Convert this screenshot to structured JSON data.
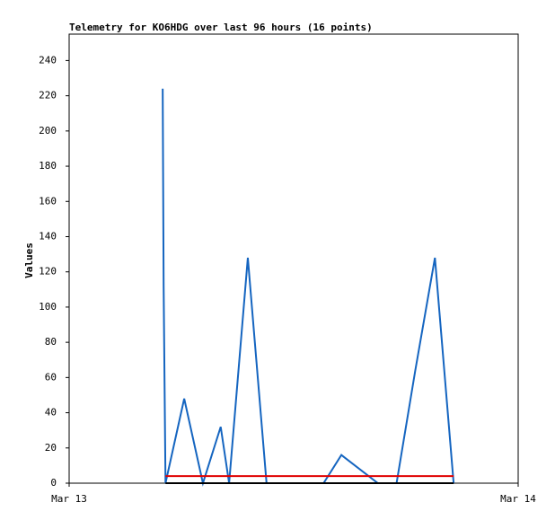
{
  "chart_data": {
    "type": "line",
    "title": "Telemetry for KO6HDG over last 96 hours (16 points)",
    "y_label": "Values",
    "x": [
      5.0,
      5.05,
      5.15,
      6.15,
      7.15,
      8.1,
      8.55,
      9.55,
      10.55,
      13.6,
      14.55,
      16.5,
      17.5,
      18.5,
      19.55,
      20.55
    ],
    "series": [
      {
        "color": "#1565c0",
        "values": [
          224,
          112,
          0,
          48,
          0,
          32,
          0,
          128,
          0,
          0,
          16,
          0,
          0,
          64,
          128,
          0
        ]
      },
      {
        "color": "#e00000",
        "values": [
          null,
          null,
          4,
          4,
          4,
          4,
          4,
          4,
          4,
          4,
          4,
          4,
          4,
          4,
          4,
          4
        ]
      },
      {
        "color": "#000000",
        "values": [
          null,
          null,
          0,
          0,
          0,
          0,
          0,
          0,
          0,
          0,
          0,
          0,
          0,
          0,
          0,
          0
        ]
      }
    ],
    "xlim": [
      0,
      24
    ],
    "xticks": [
      {
        "value": 0,
        "label": "Mar 13"
      },
      {
        "value": 24,
        "label": "Mar 14"
      }
    ],
    "ylim": [
      0,
      255
    ],
    "yticks": [
      0,
      20,
      40,
      60,
      80,
      100,
      120,
      140,
      160,
      180,
      200,
      220,
      240
    ],
    "grid": false
  }
}
